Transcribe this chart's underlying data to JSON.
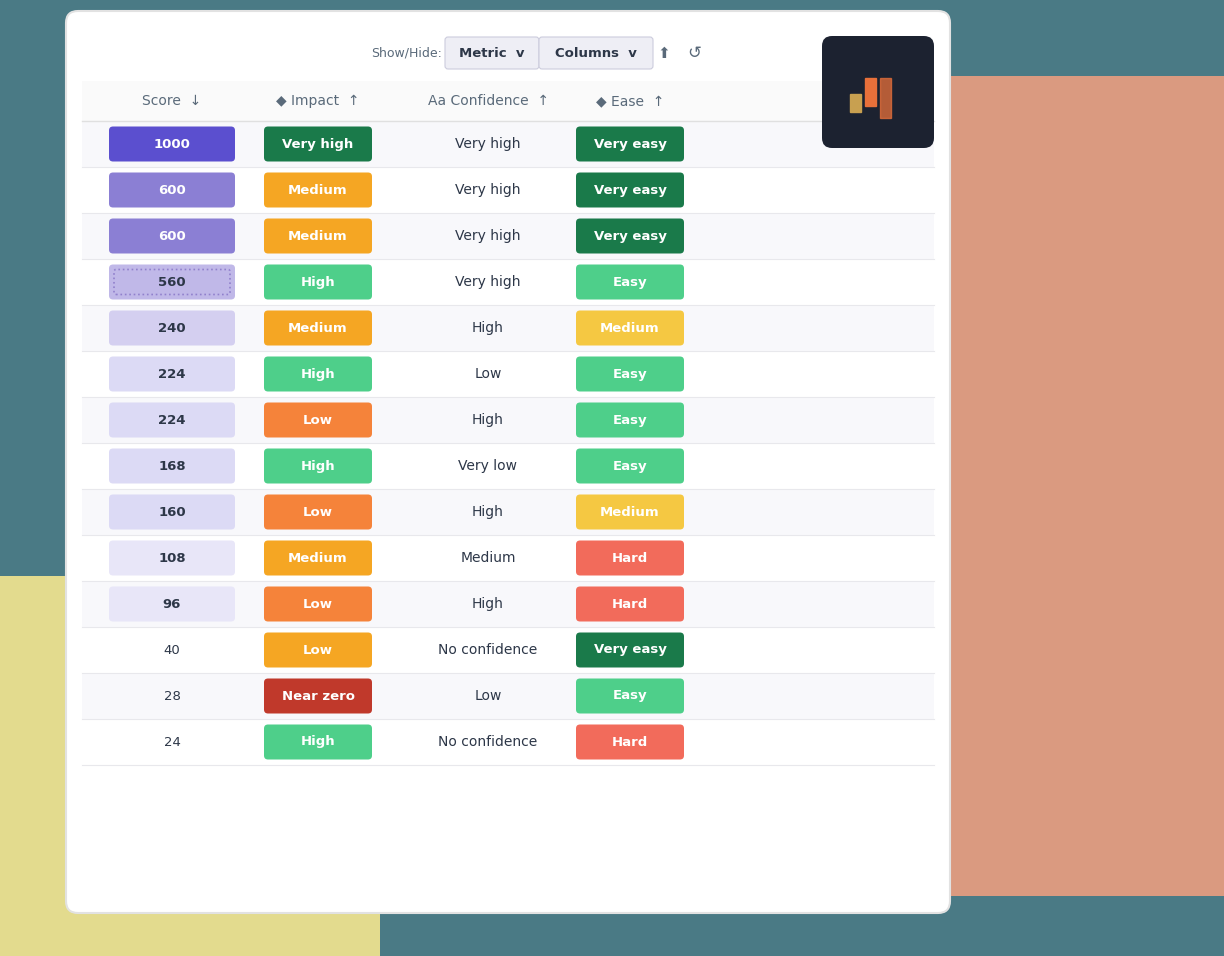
{
  "bg_outer": "#4a7a85",
  "bg_card": "#ffffff",
  "bg_yellow": "#f5e690",
  "bg_salmon": "#f4a080",
  "columns": [
    "Score",
    "Impact",
    "Confidence",
    "Ease"
  ],
  "rows": [
    {
      "score": "1000",
      "score_bg": "#5b4fcf",
      "score_text": "#ffffff",
      "score_dotted": false,
      "impact": "Very high",
      "impact_bg": "#1a7a4a",
      "impact_text": "#ffffff",
      "confidence": "Very high",
      "confidence_text": "#2d3748",
      "ease": "Very easy",
      "ease_bg": "#1a7a4a",
      "ease_text": "#ffffff"
    },
    {
      "score": "600",
      "score_bg": "#8b7fd4",
      "score_text": "#ffffff",
      "score_dotted": false,
      "impact": "Medium",
      "impact_bg": "#f5a623",
      "impact_text": "#ffffff",
      "confidence": "Very high",
      "confidence_text": "#2d3748",
      "ease": "Very easy",
      "ease_bg": "#1a7a4a",
      "ease_text": "#ffffff"
    },
    {
      "score": "600",
      "score_bg": "#8b7fd4",
      "score_text": "#ffffff",
      "score_dotted": false,
      "impact": "Medium",
      "impact_bg": "#f5a623",
      "impact_text": "#ffffff",
      "confidence": "Very high",
      "confidence_text": "#2d3748",
      "ease": "Very easy",
      "ease_bg": "#1a7a4a",
      "ease_text": "#ffffff"
    },
    {
      "score": "560",
      "score_bg": "#c0b8e8",
      "score_text": "#2d3748",
      "score_dotted": true,
      "impact": "High",
      "impact_bg": "#4ecf8a",
      "impact_text": "#ffffff",
      "confidence": "Very high",
      "confidence_text": "#2d3748",
      "ease": "Easy",
      "ease_bg": "#4ecf8a",
      "ease_text": "#ffffff"
    },
    {
      "score": "240",
      "score_bg": "#d4cff0",
      "score_text": "#2d3748",
      "score_dotted": false,
      "impact": "Medium",
      "impact_bg": "#f5a623",
      "impact_text": "#ffffff",
      "confidence": "High",
      "confidence_text": "#2d3748",
      "ease": "Medium",
      "ease_bg": "#f5c842",
      "ease_text": "#ffffff"
    },
    {
      "score": "224",
      "score_bg": "#dcdaf5",
      "score_text": "#2d3748",
      "score_dotted": false,
      "impact": "High",
      "impact_bg": "#4ecf8a",
      "impact_text": "#ffffff",
      "confidence": "Low",
      "confidence_text": "#2d3748",
      "ease": "Easy",
      "ease_bg": "#4ecf8a",
      "ease_text": "#ffffff"
    },
    {
      "score": "224",
      "score_bg": "#dcdaf5",
      "score_text": "#2d3748",
      "score_dotted": false,
      "impact": "Low",
      "impact_bg": "#f5833a",
      "impact_text": "#ffffff",
      "confidence": "High",
      "confidence_text": "#2d3748",
      "ease": "Easy",
      "ease_bg": "#4ecf8a",
      "ease_text": "#ffffff"
    },
    {
      "score": "168",
      "score_bg": "#dcdaf5",
      "score_text": "#2d3748",
      "score_dotted": false,
      "impact": "High",
      "impact_bg": "#4ecf8a",
      "impact_text": "#ffffff",
      "confidence": "Very low",
      "confidence_text": "#2d3748",
      "ease": "Easy",
      "ease_bg": "#4ecf8a",
      "ease_text": "#ffffff"
    },
    {
      "score": "160",
      "score_bg": "#dcdaf5",
      "score_text": "#2d3748",
      "score_dotted": false,
      "impact": "Low",
      "impact_bg": "#f5833a",
      "impact_text": "#ffffff",
      "confidence": "High",
      "confidence_text": "#2d3748",
      "ease": "Medium",
      "ease_bg": "#f5c842",
      "ease_text": "#ffffff"
    },
    {
      "score": "108",
      "score_bg": "#e8e6f8",
      "score_text": "#2d3748",
      "score_dotted": false,
      "impact": "Medium",
      "impact_bg": "#f5a623",
      "impact_text": "#ffffff",
      "confidence": "Medium",
      "confidence_text": "#2d3748",
      "ease": "Hard",
      "ease_bg": "#f26b5b",
      "ease_text": "#ffffff"
    },
    {
      "score": "96",
      "score_bg": "#e8e6f8",
      "score_text": "#2d3748",
      "score_dotted": false,
      "impact": "Low",
      "impact_bg": "#f5833a",
      "impact_text": "#ffffff",
      "confidence": "High",
      "confidence_text": "#2d3748",
      "ease": "Hard",
      "ease_bg": "#f26b5b",
      "ease_text": "#ffffff"
    },
    {
      "score": "40",
      "score_bg": null,
      "score_text": "#2d3748",
      "score_dotted": false,
      "impact": "Low",
      "impact_bg": "#f5a623",
      "impact_text": "#ffffff",
      "confidence": "No confidence",
      "confidence_text": "#2d3748",
      "ease": "Very easy",
      "ease_bg": "#1a7a4a",
      "ease_text": "#ffffff"
    },
    {
      "score": "28",
      "score_bg": null,
      "score_text": "#2d3748",
      "score_dotted": false,
      "impact": "Near zero",
      "impact_bg": "#c0392b",
      "impact_text": "#ffffff",
      "confidence": "Low",
      "confidence_text": "#2d3748",
      "ease": "Easy",
      "ease_bg": "#4ecf8a",
      "ease_text": "#ffffff"
    },
    {
      "score": "24",
      "score_bg": null,
      "score_text": "#2d3748",
      "score_dotted": false,
      "impact": "High",
      "impact_bg": "#4ecf8a",
      "impact_text": "#ffffff",
      "confidence": "No confidence",
      "confidence_text": "#2d3748",
      "ease": "Hard",
      "ease_bg": "#f26b5b",
      "ease_text": "#ffffff"
    }
  ]
}
